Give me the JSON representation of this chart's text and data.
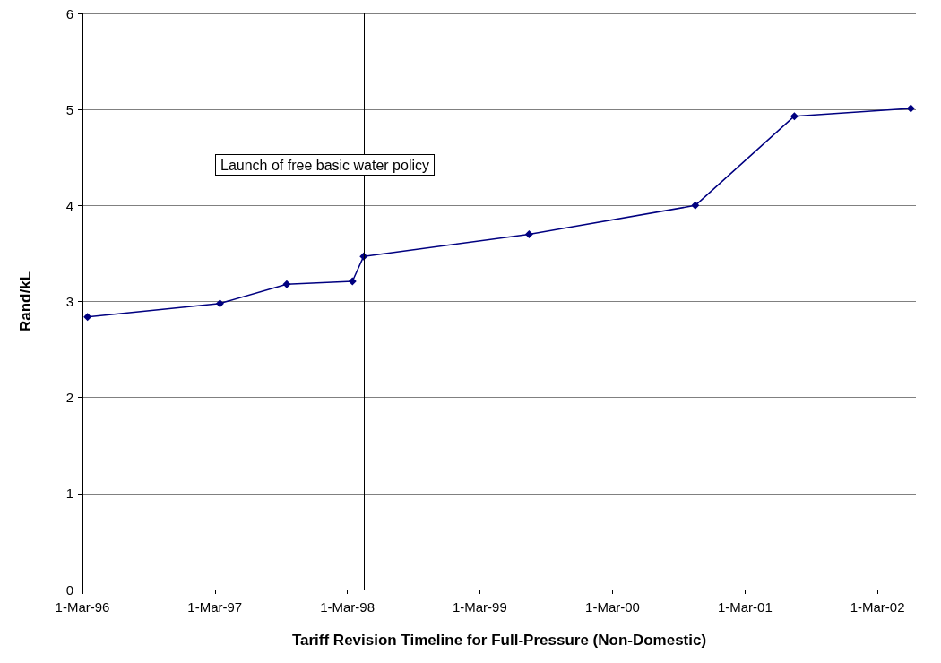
{
  "chart_data": {
    "type": "line",
    "xlabel": "Tariff Revision Timeline for Full-Pressure (Non-Domestic)",
    "ylabel": "Rand/kL",
    "x": [
      "1996-03-15",
      "1997-03-15",
      "1997-09-15",
      "1998-03-15",
      "1998-04-15",
      "1999-07-15",
      "2000-10-15",
      "2001-07-15",
      "2002-06-01"
    ],
    "series": [
      {
        "color": "#000080",
        "values": [
          2.84,
          2.98,
          3.18,
          3.21,
          3.47,
          3.7,
          4.0,
          4.93,
          5.01
        ]
      }
    ],
    "xlim": [
      "1996-03-01",
      "2002-06-15"
    ],
    "xticks": [
      {
        "value": "1996-03-01",
        "label": "1-Mar-96"
      },
      {
        "value": "1997-03-01",
        "label": "1-Mar-97"
      },
      {
        "value": "1998-03-01",
        "label": "1-Mar-98"
      },
      {
        "value": "1999-03-01",
        "label": "1-Mar-99"
      },
      {
        "value": "2000-03-01",
        "label": "1-Mar-00"
      },
      {
        "value": "2001-03-01",
        "label": "1-Mar-01"
      },
      {
        "value": "2002-03-01",
        "label": "1-Mar-02"
      }
    ],
    "ylim": [
      0,
      6
    ],
    "yticks": [
      0,
      1,
      2,
      3,
      4,
      5,
      6
    ],
    "ref_lines": [
      {
        "axis": "x",
        "value": "1998-04-15",
        "color": "#000000"
      }
    ],
    "annotations": [
      "Launch of free basic water policy"
    ],
    "grid": "y",
    "marker": "diamond",
    "line_style": "solid"
  }
}
